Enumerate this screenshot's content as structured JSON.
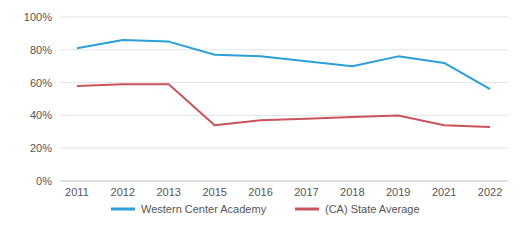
{
  "chart_data": {
    "type": "line",
    "categories": [
      "2011",
      "2012",
      "2013",
      "2015",
      "2016",
      "2017",
      "2018",
      "2019",
      "2021",
      "2022"
    ],
    "series": [
      {
        "name": "Western Center Academy",
        "color": "#2b9fd7",
        "values": [
          81,
          86,
          85,
          77,
          76,
          73,
          70,
          76,
          72,
          56
        ]
      },
      {
        "name": "(CA) State Average",
        "color": "#c9545b",
        "values": [
          58,
          59,
          59,
          34,
          37,
          38,
          39,
          40,
          34,
          33
        ]
      }
    ],
    "ylim": [
      0,
      100
    ],
    "yticks": [
      {
        "value": 0,
        "label": "0%"
      },
      {
        "value": 20,
        "label": "20%"
      },
      {
        "value": 40,
        "label": "40%"
      },
      {
        "value": 60,
        "label": "60%"
      },
      {
        "value": 80,
        "label": "80%"
      },
      {
        "value": 100,
        "label": "100%"
      }
    ],
    "grid": true,
    "legend": "bottom"
  }
}
